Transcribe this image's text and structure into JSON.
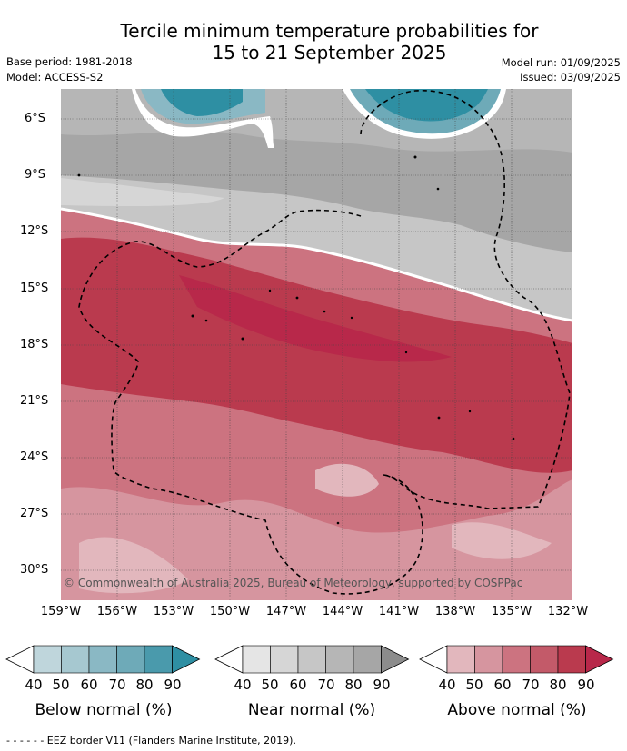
{
  "title_line1": "Tercile minimum temperature probabilities for",
  "title_line2": "15 to 21 September 2025",
  "base_period": "Base period: 1981-2018",
  "model": "Model: ACCESS-S2",
  "model_run": "Model run: 01/09/2025",
  "issued": "Issued: 03/09/2025",
  "latitude_labels": [
    "6°S",
    "9°S",
    "12°S",
    "15°S",
    "18°S",
    "21°S",
    "24°S",
    "27°S",
    "30°S"
  ],
  "longitude_labels": [
    "159°W",
    "156°W",
    "153°W",
    "150°W",
    "147°W",
    "144°W",
    "141°W",
    "138°W",
    "135°W",
    "132°W"
  ],
  "copyright": "© Commonwealth of Australia 2025, Bureau of Meteorology, supported by COSPPac",
  "colorbars": [
    {
      "title": "Below normal (%)",
      "ticks": [
        "40",
        "50",
        "60",
        "70",
        "80",
        "90"
      ],
      "colors": [
        "#bfd6dc",
        "#a6c8d0",
        "#8ab8c4",
        "#6eaab8",
        "#4a9aac",
        "#2e8fa3"
      ]
    },
    {
      "title": "Near normal (%)",
      "ticks": [
        "40",
        "50",
        "60",
        "70",
        "80",
        "90"
      ],
      "colors": [
        "#e5e5e5",
        "#d6d6d6",
        "#c6c6c6",
        "#b6b6b6",
        "#a6a6a6",
        "#8c8c8c"
      ]
    },
    {
      "title": "Above normal (%)",
      "ticks": [
        "40",
        "50",
        "60",
        "70",
        "80",
        "90"
      ],
      "colors": [
        "#e2b7bd",
        "#d6959f",
        "#cc7380",
        "#c35a69",
        "#ba3a4e",
        "#b8284a"
      ]
    }
  ],
  "eez_note": "- -  - -  - - EEZ border V11 (Flanders Marine Institute, 2019)."
}
